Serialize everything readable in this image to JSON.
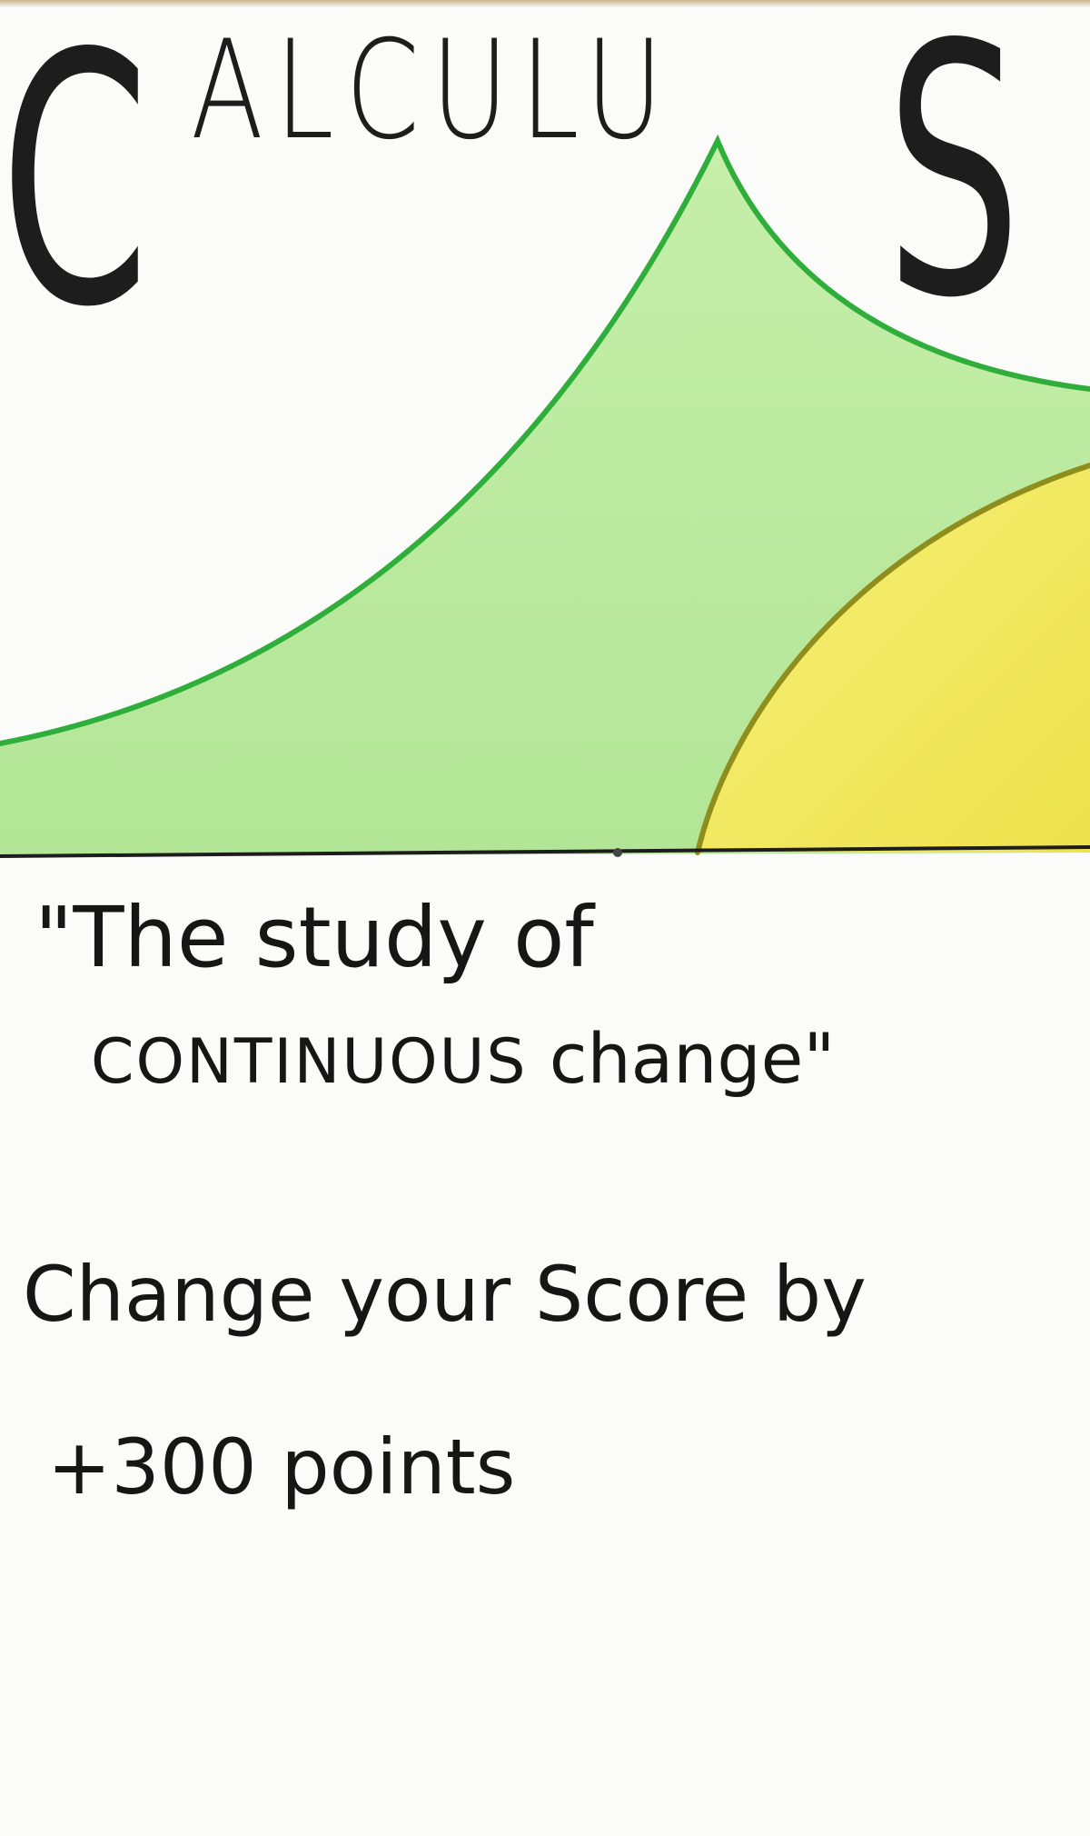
{
  "card": {
    "title": {
      "full": "CALCULUS",
      "first": "C",
      "middle": "ALCULU",
      "last": "S"
    },
    "quote": {
      "line1": "\"The study of",
      "line2_caps": "CONTINUOUS",
      "line2_rest": " change\""
    },
    "effect": {
      "line1": "Change your Score by",
      "line2": "+300 points"
    },
    "colors": {
      "curve_green": "#2fae3b",
      "fill_green": "#b8e89a",
      "curve_yellow": "#a9a51a",
      "fill_yellow": "#f5ee6a",
      "ink": "#161616"
    }
  }
}
